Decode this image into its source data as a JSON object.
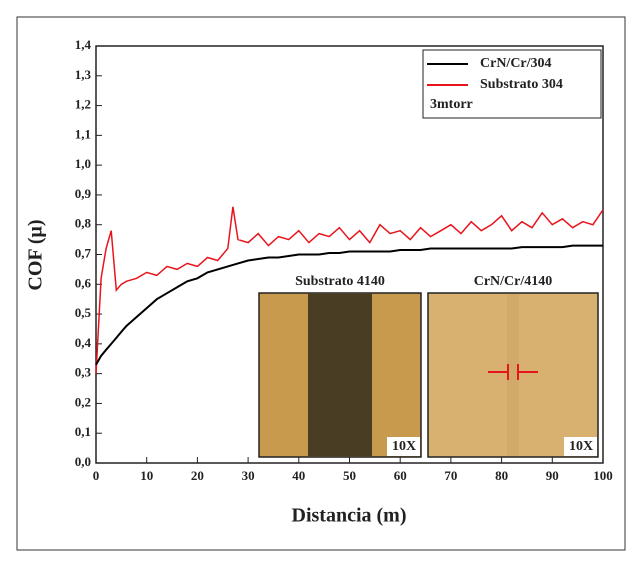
{
  "chart_data": {
    "type": "line",
    "x_label": "Distancia (m)",
    "y_label": "COF (μ)",
    "x": [
      0,
      1,
      2,
      3,
      4,
      5,
      6,
      8,
      10,
      12,
      14,
      16,
      18,
      20,
      22,
      24,
      26,
      27,
      28,
      30,
      32,
      34,
      36,
      38,
      40,
      42,
      44,
      46,
      48,
      50,
      52,
      54,
      56,
      58,
      60,
      62,
      64,
      66,
      68,
      70,
      72,
      74,
      76,
      78,
      80,
      82,
      84,
      86,
      88,
      90,
      92,
      94,
      96,
      98,
      100
    ],
    "series": [
      {
        "name": "CrN/Cr/304",
        "color": "#000000",
        "values": [
          0.33,
          0.36,
          0.38,
          0.4,
          0.42,
          0.44,
          0.46,
          0.49,
          0.52,
          0.55,
          0.57,
          0.59,
          0.61,
          0.62,
          0.64,
          0.65,
          0.66,
          0.665,
          0.67,
          0.68,
          0.685,
          0.69,
          0.69,
          0.695,
          0.7,
          0.7,
          0.7,
          0.705,
          0.705,
          0.71,
          0.71,
          0.71,
          0.71,
          0.71,
          0.715,
          0.715,
          0.715,
          0.72,
          0.72,
          0.72,
          0.72,
          0.72,
          0.72,
          0.72,
          0.72,
          0.72,
          0.725,
          0.725,
          0.725,
          0.725,
          0.725,
          0.73,
          0.73,
          0.73,
          0.73
        ]
      },
      {
        "name": "Substrato 304",
        "color": "#e8141c",
        "values": [
          0.3,
          0.62,
          0.72,
          0.78,
          0.58,
          0.6,
          0.61,
          0.62,
          0.64,
          0.63,
          0.66,
          0.65,
          0.67,
          0.66,
          0.69,
          0.68,
          0.72,
          0.86,
          0.75,
          0.74,
          0.77,
          0.73,
          0.76,
          0.75,
          0.78,
          0.74,
          0.77,
          0.76,
          0.79,
          0.75,
          0.78,
          0.74,
          0.8,
          0.77,
          0.78,
          0.75,
          0.79,
          0.76,
          0.78,
          0.8,
          0.77,
          0.81,
          0.78,
          0.8,
          0.83,
          0.78,
          0.81,
          0.79,
          0.84,
          0.8,
          0.82,
          0.79,
          0.81,
          0.8,
          0.85
        ]
      }
    ],
    "annotation": "3mtorr",
    "insets": [
      {
        "title": "Substrato 4140",
        "magnification": "10X"
      },
      {
        "title": "CrN/Cr/4140",
        "magnification": "10X"
      }
    ],
    "xlim": [
      0,
      100
    ],
    "xticks": [
      0,
      10,
      20,
      30,
      40,
      50,
      60,
      70,
      80,
      90,
      100
    ],
    "ylim": [
      0,
      1.4
    ],
    "yticks": [
      {
        "value": 0,
        "label": "0,0"
      },
      {
        "value": 0.1,
        "label": "0,1"
      },
      {
        "value": 0.2,
        "label": "0,2"
      },
      {
        "value": 0.3,
        "label": "0,3"
      },
      {
        "value": 0.4,
        "label": "0,4"
      },
      {
        "value": 0.5,
        "label": "0,5"
      },
      {
        "value": 0.6,
        "label": "0,6"
      },
      {
        "value": 0.7,
        "label": "0,7"
      },
      {
        "value": 0.8,
        "label": "0,8"
      },
      {
        "value": 0.9,
        "label": "0,9"
      },
      {
        "value": 1.0,
        "label": "1,0"
      },
      {
        "value": 1.1,
        "label": "1,1"
      },
      {
        "value": 1.2,
        "label": "1,2"
      },
      {
        "value": 1.3,
        "label": "1,3"
      },
      {
        "value": 1.4,
        "label": "1,4"
      }
    ]
  }
}
